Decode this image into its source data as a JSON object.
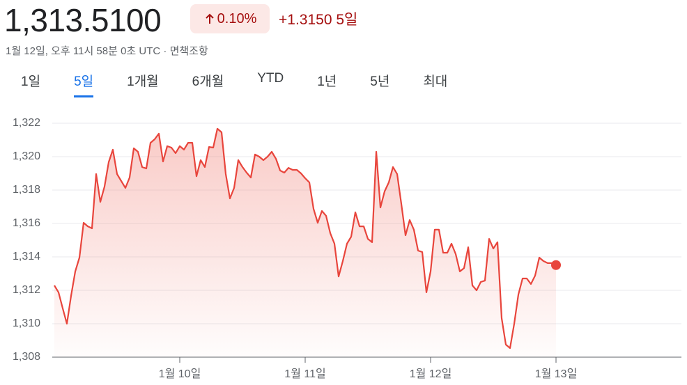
{
  "header": {
    "price": "1,313.5100",
    "change_percent": "0.10%",
    "change": "+1.3150 5일",
    "timestamp": "1월 12일, 오후 11시 58분 0초 UTC · ",
    "disclaimer": "면책조항"
  },
  "tabs": [
    "1일",
    "5일",
    "1개월",
    "6개월",
    "YTD",
    "1년",
    "5년",
    "최대"
  ],
  "selected_tab": 1,
  "chart_data": {
    "type": "line",
    "color": "#e8453c",
    "x": [
      0,
      1,
      2,
      3,
      4,
      5,
      6,
      7,
      8,
      9,
      10,
      11,
      12,
      13,
      14,
      15,
      16,
      17,
      18,
      19,
      20,
      21,
      22,
      23,
      24,
      25,
      26,
      27,
      28,
      29,
      30,
      31,
      32,
      33,
      34,
      35,
      36,
      37,
      38,
      39,
      40,
      41,
      42,
      43,
      44,
      45,
      46,
      47,
      48,
      49,
      50,
      51,
      52,
      53,
      54,
      55,
      56,
      57,
      58,
      59,
      60,
      61,
      62,
      63,
      64,
      65,
      66,
      67,
      68,
      69,
      70,
      71,
      72,
      73,
      74,
      75,
      76,
      77,
      78,
      79,
      80,
      81,
      82,
      83,
      84,
      85,
      86,
      87,
      88,
      89,
      90,
      91,
      92,
      93,
      94,
      95,
      96,
      97,
      98,
      99,
      100,
      101,
      102,
      103,
      104,
      105,
      106,
      107,
      108,
      109,
      110,
      111,
      112,
      113,
      114,
      115,
      116,
      117,
      118,
      119,
      120
    ],
    "values": [
      1312.29,
      1311.88,
      1310.92,
      1310.0,
      1311.67,
      1313.13,
      1313.96,
      1316.04,
      1315.83,
      1315.71,
      1318.96,
      1317.29,
      1318.21,
      1319.67,
      1320.42,
      1318.96,
      1318.54,
      1318.13,
      1318.75,
      1320.5,
      1320.29,
      1319.38,
      1319.29,
      1320.83,
      1321.04,
      1321.38,
      1319.71,
      1320.63,
      1320.54,
      1320.21,
      1320.63,
      1320.42,
      1320.83,
      1320.83,
      1318.83,
      1319.79,
      1319.38,
      1320.58,
      1320.54,
      1321.67,
      1321.46,
      1318.96,
      1317.5,
      1318.13,
      1319.79,
      1319.38,
      1319.04,
      1318.75,
      1320.13,
      1320.0,
      1319.79,
      1320.0,
      1320.29,
      1319.88,
      1319.17,
      1319.04,
      1319.33,
      1319.21,
      1319.21,
      1319.0,
      1318.71,
      1318.46,
      1316.88,
      1316.04,
      1316.75,
      1316.46,
      1315.42,
      1314.79,
      1312.83,
      1313.75,
      1314.79,
      1315.21,
      1316.67,
      1315.83,
      1315.83,
      1315.08,
      1314.88,
      1320.29,
      1316.96,
      1317.92,
      1318.46,
      1319.38,
      1318.96,
      1317.17,
      1315.29,
      1316.21,
      1315.63,
      1314.38,
      1314.29,
      1311.88,
      1313.13,
      1315.63,
      1315.63,
      1314.25,
      1314.25,
      1314.79,
      1314.17,
      1313.13,
      1313.33,
      1314.58,
      1312.29,
      1312.0,
      1312.5,
      1312.58,
      1315.08,
      1314.5,
      1314.88,
      1310.33,
      1308.75,
      1308.54,
      1310.0,
      1311.75,
      1312.71,
      1312.71,
      1312.38,
      1312.88,
      1313.96,
      1313.75,
      1313.63,
      1313.63,
      1313.51
    ],
    "xlim": [
      0,
      150
    ],
    "xticks": [
      {
        "value": 30,
        "label": "1월 10일"
      },
      {
        "value": 60,
        "label": "1월 11일"
      },
      {
        "value": 90,
        "label": "1월 12일"
      },
      {
        "value": 120,
        "label": "1월 13일"
      }
    ],
    "ylim": [
      1308,
      1323
    ],
    "yticks": [
      {
        "value": 1308,
        "label": "1,308"
      },
      {
        "value": 1310,
        "label": "1,310"
      },
      {
        "value": 1312,
        "label": "1,312"
      },
      {
        "value": 1314,
        "label": "1,314"
      },
      {
        "value": 1316,
        "label": "1,316"
      },
      {
        "value": 1318,
        "label": "1,318"
      },
      {
        "value": 1320,
        "label": "1,320"
      },
      {
        "value": 1322,
        "label": "1,322"
      }
    ],
    "grid": true
  }
}
